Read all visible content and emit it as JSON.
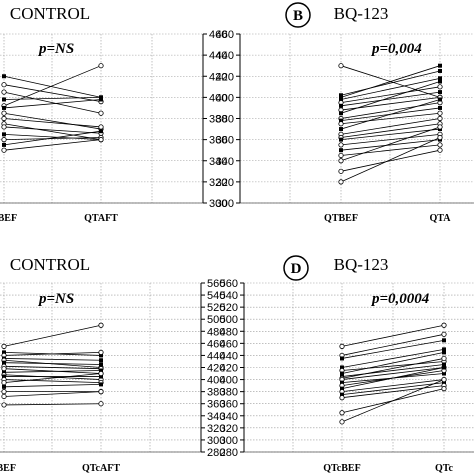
{
  "chart_data": [
    {
      "id": "A",
      "type": "line",
      "title": "CONTROL",
      "badge": "",
      "pvalue": "p=NS",
      "categories": [
        "QTBEF",
        "QTAFT"
      ],
      "x_tick_labels": [
        "TBEF",
        "QTAFT"
      ],
      "ylim": [
        300,
        460
      ],
      "yticks": [
        300,
        320,
        340,
        360,
        380,
        400,
        420,
        440,
        460
      ],
      "y_axis_side": "right",
      "grid": true,
      "series": [
        {
          "values": [
            420,
            400
          ],
          "marker": "filled"
        },
        {
          "values": [
            412,
            396
          ],
          "marker": "open"
        },
        {
          "values": [
            405,
            385
          ],
          "marker": "open"
        },
        {
          "values": [
            398,
            400
          ],
          "marker": "filled"
        },
        {
          "values": [
            392,
            430
          ],
          "marker": "open"
        },
        {
          "values": [
            390,
            398
          ],
          "marker": "filled"
        },
        {
          "values": [
            385,
            370
          ],
          "marker": "open"
        },
        {
          "values": [
            380,
            372
          ],
          "marker": "open"
        },
        {
          "values": [
            375,
            360
          ],
          "marker": "open"
        },
        {
          "values": [
            372,
            366
          ],
          "marker": "open"
        },
        {
          "values": [
            365,
            360
          ],
          "marker": "filled"
        },
        {
          "values": [
            360,
            362
          ],
          "marker": "open"
        },
        {
          "values": [
            355,
            368
          ],
          "marker": "filled"
        },
        {
          "values": [
            350,
            360
          ],
          "marker": "open"
        }
      ]
    },
    {
      "id": "B",
      "type": "line",
      "title": "BQ-123",
      "badge": "B",
      "pvalue": "p=0,004",
      "categories": [
        "QTBEF",
        "QTAFT"
      ],
      "x_tick_labels": [
        "QTBEF",
        "QTA"
      ],
      "ylim": [
        300,
        460
      ],
      "yticks": [
        300,
        320,
        340,
        360,
        380,
        400,
        420,
        440,
        460
      ],
      "y_axis_side": "left",
      "grid": true,
      "series": [
        {
          "values": [
            430,
            400
          ],
          "marker": "open"
        },
        {
          "values": [
            402,
            425
          ],
          "marker": "filled"
        },
        {
          "values": [
            400,
            430
          ],
          "marker": "filled"
        },
        {
          "values": [
            398,
            418
          ],
          "marker": "filled"
        },
        {
          "values": [
            395,
            410
          ],
          "marker": "open"
        },
        {
          "values": [
            392,
            405
          ],
          "marker": "filled"
        },
        {
          "values": [
            388,
            400
          ],
          "marker": "open"
        },
        {
          "values": [
            385,
            415
          ],
          "marker": "filled"
        },
        {
          "values": [
            380,
            395
          ],
          "marker": "open"
        },
        {
          "values": [
            378,
            390
          ],
          "marker": "filled"
        },
        {
          "values": [
            375,
            385
          ],
          "marker": "open"
        },
        {
          "values": [
            370,
            398
          ],
          "marker": "filled"
        },
        {
          "values": [
            365,
            380
          ],
          "marker": "open"
        },
        {
          "values": [
            362,
            375
          ],
          "marker": "open"
        },
        {
          "values": [
            360,
            370
          ],
          "marker": "filled"
        },
        {
          "values": [
            355,
            365
          ],
          "marker": "open"
        },
        {
          "values": [
            350,
            360
          ],
          "marker": "filled"
        },
        {
          "values": [
            345,
            355
          ],
          "marker": "open"
        },
        {
          "values": [
            340,
            372
          ],
          "marker": "open"
        },
        {
          "values": [
            330,
            350
          ],
          "marker": "open"
        },
        {
          "values": [
            320,
            362
          ],
          "marker": "open"
        }
      ]
    },
    {
      "id": "C",
      "type": "line",
      "title": "CONTROL",
      "badge": "",
      "pvalue": "p=NS",
      "categories": [
        "QTcBEF",
        "QTcAFT"
      ],
      "x_tick_labels": [
        "cBEF",
        "QTcAFT"
      ],
      "ylim": [
        280,
        560
      ],
      "yticks": [
        280,
        300,
        320,
        340,
        360,
        380,
        400,
        420,
        440,
        460,
        480,
        500,
        520,
        540,
        560
      ],
      "y_axis_side": "right",
      "grid": true,
      "series": [
        {
          "values": [
            455,
            490
          ],
          "marker": "open"
        },
        {
          "values": [
            445,
            440
          ],
          "marker": "filled"
        },
        {
          "values": [
            440,
            445
          ],
          "marker": "open"
        },
        {
          "values": [
            435,
            432
          ],
          "marker": "filled"
        },
        {
          "values": [
            432,
            420
          ],
          "marker": "open"
        },
        {
          "values": [
            428,
            425
          ],
          "marker": "filled"
        },
        {
          "values": [
            422,
            418
          ],
          "marker": "open"
        },
        {
          "values": [
            418,
            410
          ],
          "marker": "open"
        },
        {
          "values": [
            412,
            415
          ],
          "marker": "filled"
        },
        {
          "values": [
            408,
            400
          ],
          "marker": "open"
        },
        {
          "values": [
            405,
            405
          ],
          "marker": "filled"
        },
        {
          "values": [
            400,
            395
          ],
          "marker": "open"
        },
        {
          "values": [
            395,
            410
          ],
          "marker": "open"
        },
        {
          "values": [
            388,
            392
          ],
          "marker": "filled"
        },
        {
          "values": [
            380,
            380
          ],
          "marker": "open"
        },
        {
          "values": [
            372,
            380
          ],
          "marker": "open"
        },
        {
          "values": [
            358,
            360
          ],
          "marker": "open"
        }
      ]
    },
    {
      "id": "D",
      "type": "line",
      "title": "BQ-123",
      "badge": "D",
      "pvalue": "p=0,0004",
      "categories": [
        "QTcBEF",
        "QTcAFT"
      ],
      "x_tick_labels": [
        "QTcBEF",
        "QTc"
      ],
      "ylim": [
        280,
        560
      ],
      "yticks": [
        280,
        300,
        320,
        340,
        360,
        380,
        400,
        420,
        440,
        460,
        480,
        500,
        520,
        540,
        560
      ],
      "y_axis_side": "left",
      "grid": true,
      "series": [
        {
          "values": [
            455,
            490
          ],
          "marker": "open"
        },
        {
          "values": [
            440,
            475
          ],
          "marker": "open"
        },
        {
          "values": [
            435,
            465
          ],
          "marker": "filled"
        },
        {
          "values": [
            420,
            450
          ],
          "marker": "filled"
        },
        {
          "values": [
            415,
            430
          ],
          "marker": "open"
        },
        {
          "values": [
            410,
            445
          ],
          "marker": "filled"
        },
        {
          "values": [
            405,
            425
          ],
          "marker": "filled"
        },
        {
          "values": [
            402,
            435
          ],
          "marker": "open"
        },
        {
          "values": [
            400,
            420
          ],
          "marker": "open"
        },
        {
          "values": [
            395,
            410
          ],
          "marker": "filled"
        },
        {
          "values": [
            390,
            415
          ],
          "marker": "open"
        },
        {
          "values": [
            385,
            420
          ],
          "marker": "filled"
        },
        {
          "values": [
            380,
            400
          ],
          "marker": "open"
        },
        {
          "values": [
            375,
            395
          ],
          "marker": "filled"
        },
        {
          "values": [
            370,
            390
          ],
          "marker": "open"
        },
        {
          "values": [
            345,
            385
          ],
          "marker": "open"
        },
        {
          "values": [
            330,
            400
          ],
          "marker": "open"
        }
      ]
    }
  ]
}
